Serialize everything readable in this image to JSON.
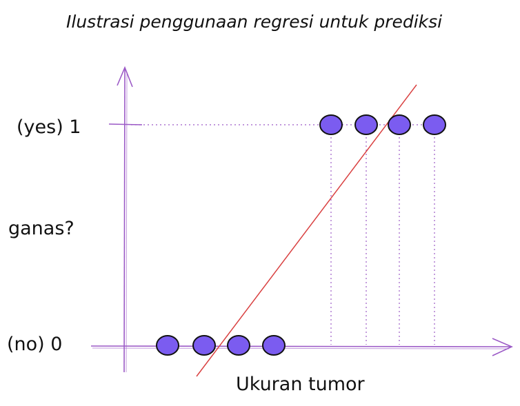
{
  "title": "Ilustrasi penggunaan regresi untuk prediksi",
  "axes": {
    "x_label": "Ukuran tumor",
    "y_label": "ganas?",
    "y_tick_top": "(yes) 1",
    "y_tick_bottom": "(no) 0"
  },
  "colors": {
    "axis": "#9b59c6",
    "point_fill": "#7b5cf0",
    "point_stroke": "#111111",
    "regression_line": "#d94040",
    "guide": "#9b59c6"
  },
  "chart_data": {
    "type": "scatter",
    "ylim": [
      0,
      1
    ],
    "series": [
      {
        "values_y0_count": 4
      },
      {
        "values_y1_count": 4
      }
    ],
    "points_class0": [
      1,
      2,
      3,
      4
    ],
    "points_class1": [
      7,
      8,
      9,
      10
    ],
    "regression": {
      "slope_direction": "positive"
    }
  }
}
